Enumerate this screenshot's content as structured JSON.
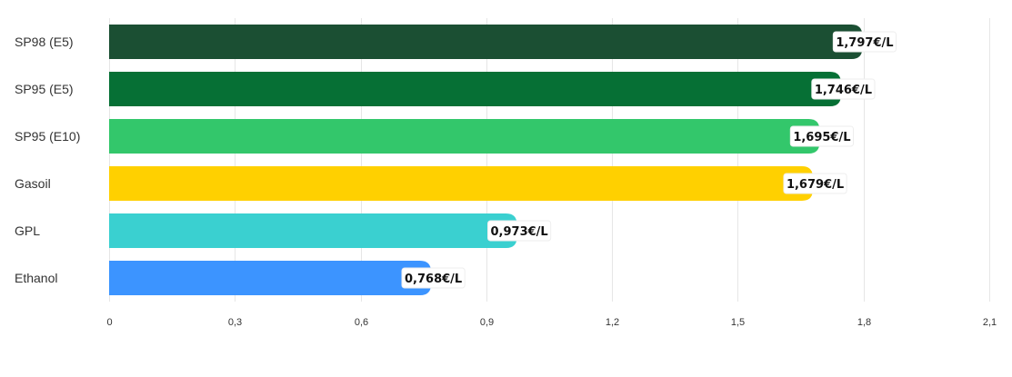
{
  "chart_data": {
    "type": "bar",
    "orientation": "horizontal",
    "categories": [
      "SP98 (E5)",
      "SP95 (E5)",
      "SP95 (E10)",
      "Gasoil",
      "GPL",
      "Ethanol"
    ],
    "values": [
      1.797,
      1.746,
      1.695,
      1.679,
      0.973,
      0.768
    ],
    "data_labels": [
      "1,797€/L",
      "1,746€/L",
      "1,695€/L",
      "1,679€/L",
      "0,973€/L",
      "0,768€/L"
    ],
    "colors": [
      "#1b4f33",
      "#067035",
      "#33c76b",
      "#ffd000",
      "#3ad0d0",
      "#3c94ff"
    ],
    "xlim": [
      0,
      2.1
    ],
    "x_ticks": [
      0,
      0.3,
      0.6,
      0.9,
      1.2,
      1.5,
      1.8,
      2.1
    ],
    "x_tick_labels": [
      "0",
      "0,3",
      "0,6",
      "0,9",
      "1,2",
      "1,5",
      "1,8",
      "2,1"
    ],
    "grid": true,
    "legend": "none"
  }
}
